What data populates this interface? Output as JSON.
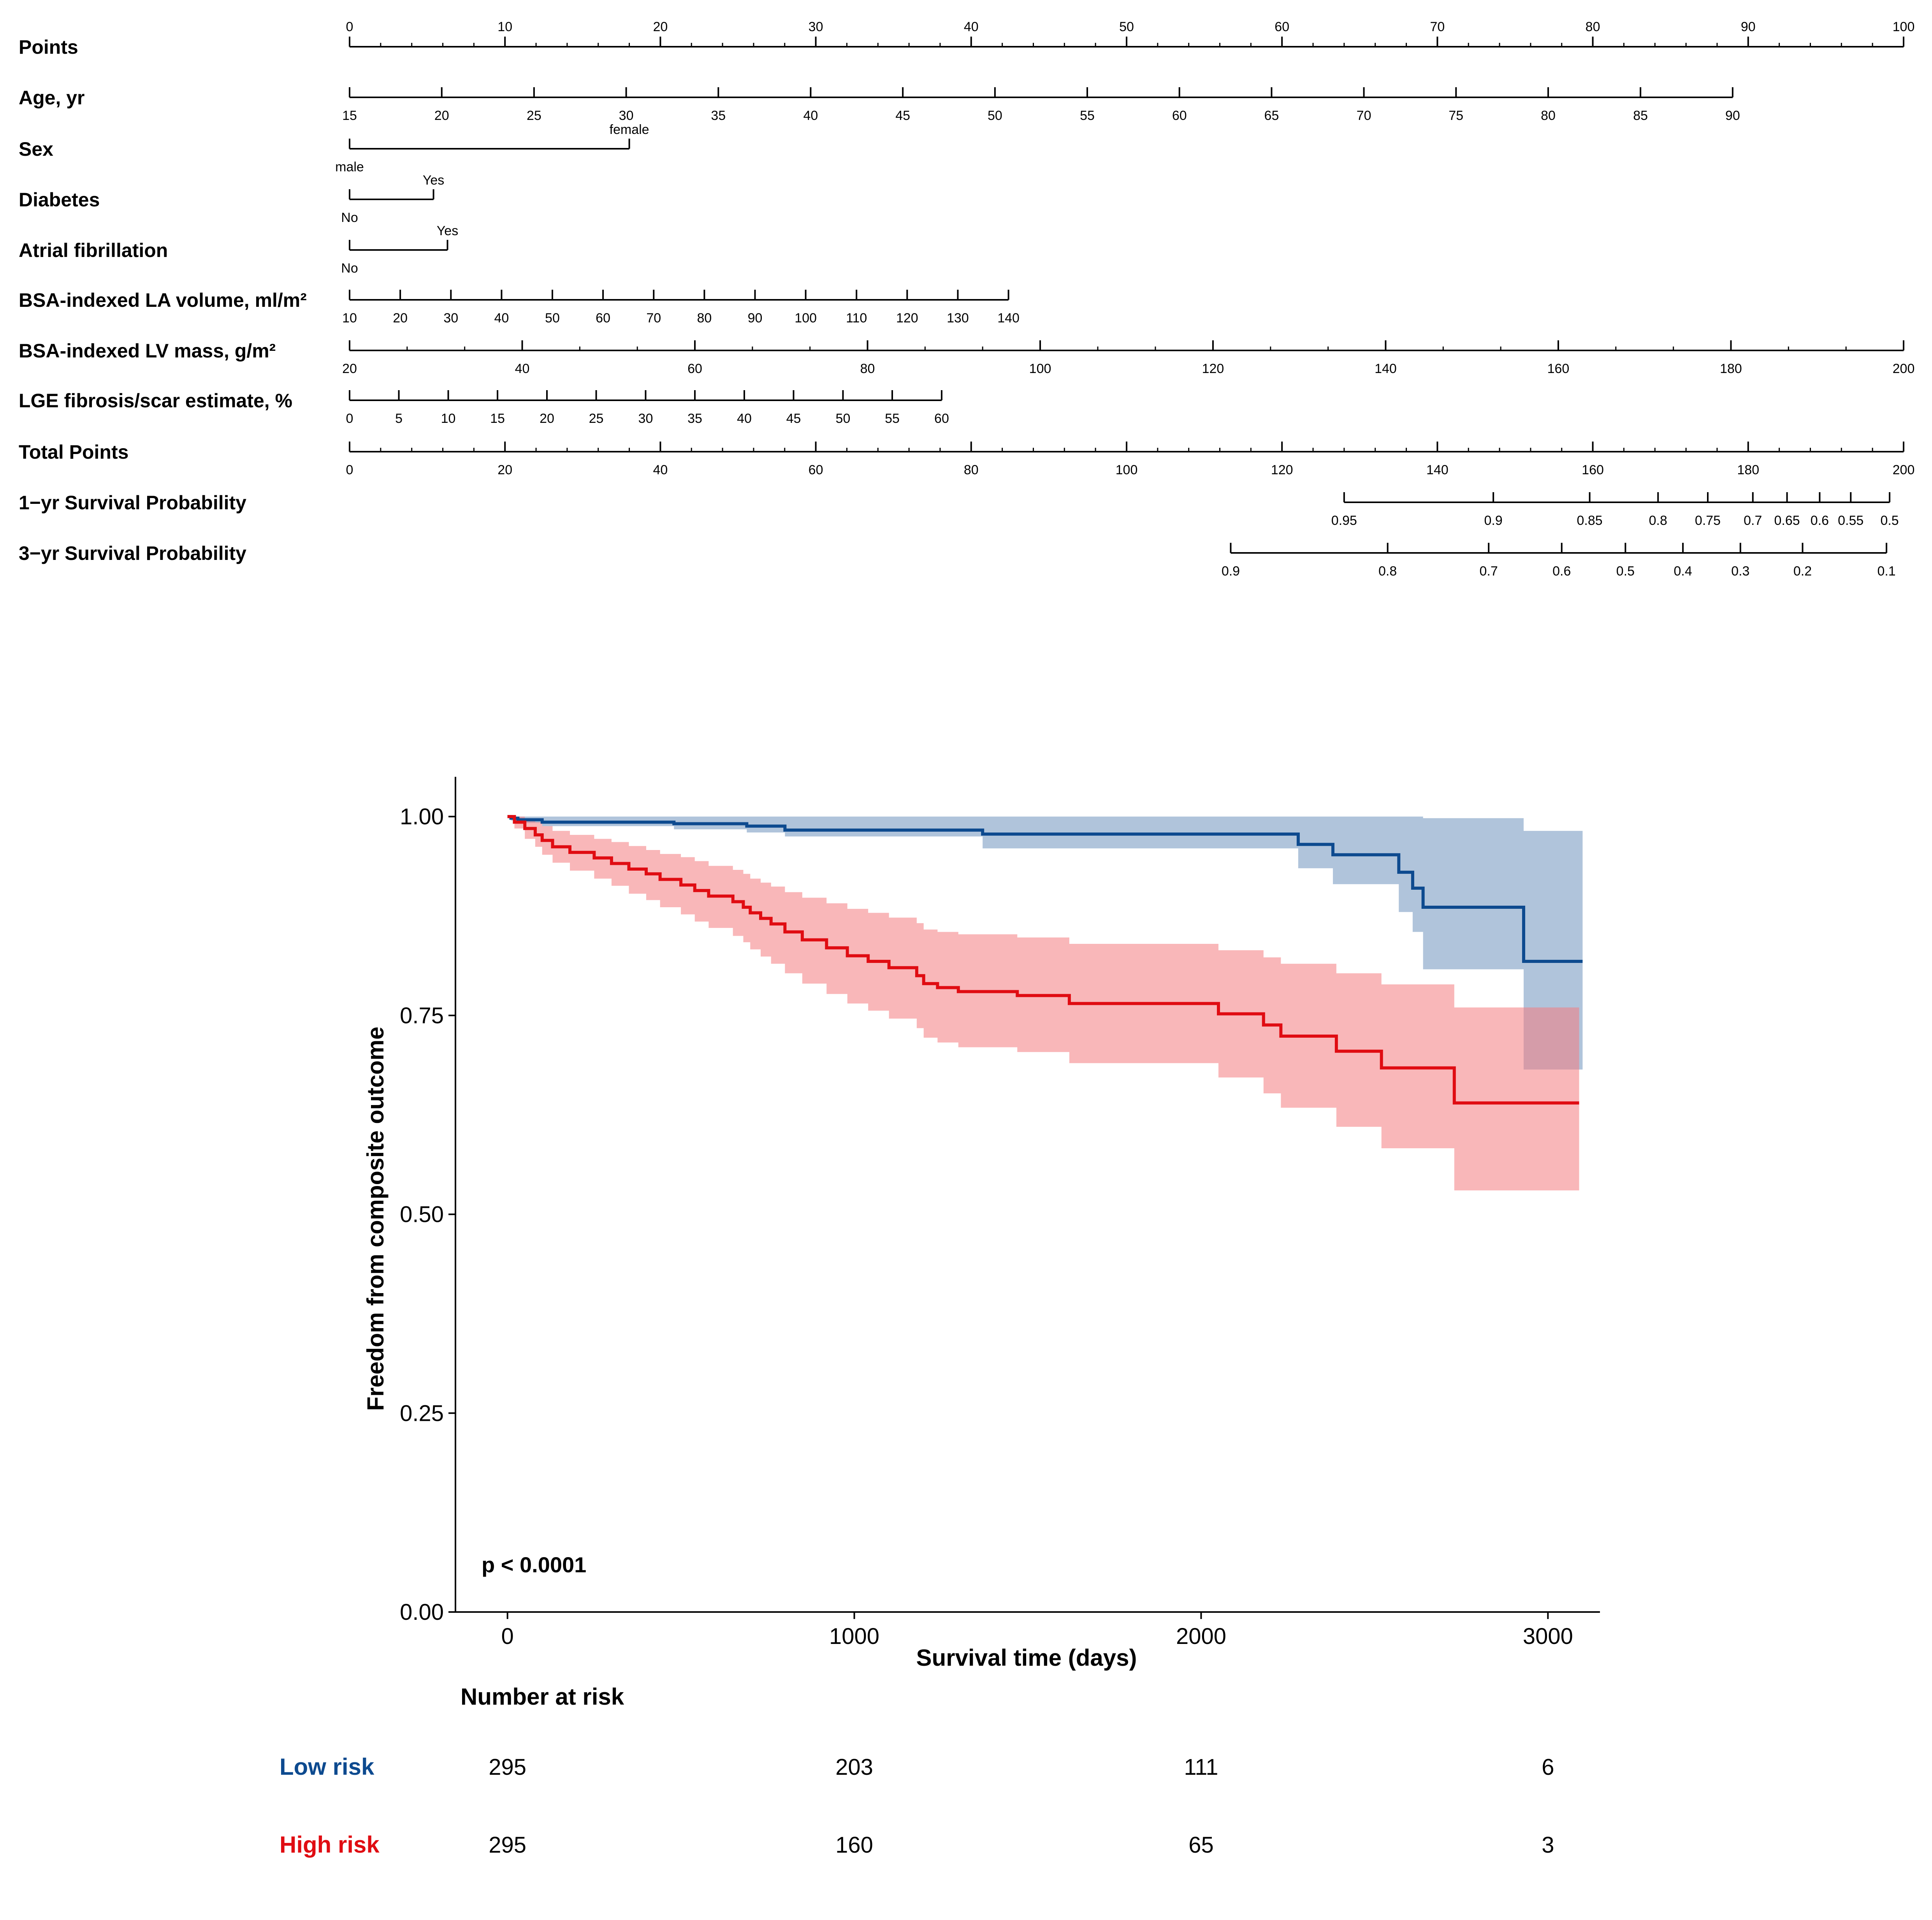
{
  "nomogram": {
    "scales": [
      {
        "id": "points",
        "label": "Points",
        "ticks": [
          {
            "v": 0,
            "t": "0"
          },
          {
            "v": 10,
            "t": "10"
          },
          {
            "v": 20,
            "t": "20"
          },
          {
            "v": 30,
            "t": "30"
          },
          {
            "v": 40,
            "t": "40"
          },
          {
            "v": 50,
            "t": "50"
          },
          {
            "v": 60,
            "t": "60"
          },
          {
            "v": 70,
            "t": "70"
          },
          {
            "v": 80,
            "t": "80"
          },
          {
            "v": 90,
            "t": "90"
          },
          {
            "v": 100,
            "t": "100"
          }
        ],
        "minor_step": 2,
        "label_pos": "above"
      },
      {
        "id": "age",
        "label": "Age, yr",
        "ticks": [
          {
            "v": 0,
            "t": "15"
          },
          {
            "v": 5.93,
            "t": "20"
          },
          {
            "v": 11.87,
            "t": "25"
          },
          {
            "v": 17.8,
            "t": "30"
          },
          {
            "v": 23.73,
            "t": "35"
          },
          {
            "v": 29.67,
            "t": "40"
          },
          {
            "v": 35.6,
            "t": "45"
          },
          {
            "v": 41.53,
            "t": "50"
          },
          {
            "v": 47.47,
            "t": "55"
          },
          {
            "v": 53.4,
            "t": "60"
          },
          {
            "v": 59.33,
            "t": "65"
          },
          {
            "v": 65.27,
            "t": "70"
          },
          {
            "v": 71.2,
            "t": "75"
          },
          {
            "v": 77.13,
            "t": "80"
          },
          {
            "v": 83.07,
            "t": "85"
          },
          {
            "v": 89.0,
            "t": "90"
          }
        ],
        "label_pos": "below"
      },
      {
        "id": "sex",
        "label": "Sex",
        "ticks": [
          {
            "v": 0,
            "t": "male",
            "pos": "below"
          },
          {
            "v": 18.0,
            "t": "female",
            "pos": "above"
          }
        ]
      },
      {
        "id": "diabetes",
        "label": "Diabetes",
        "ticks": [
          {
            "v": 0,
            "t": "No",
            "pos": "below"
          },
          {
            "v": 5.4,
            "t": "Yes",
            "pos": "above"
          }
        ]
      },
      {
        "id": "af",
        "label": "Atrial fibrillation",
        "ticks": [
          {
            "v": 0,
            "t": "No",
            "pos": "below"
          },
          {
            "v": 6.3,
            "t": "Yes",
            "pos": "above"
          }
        ]
      },
      {
        "id": "la",
        "label": "BSA-indexed LA volume, ml/m²",
        "ticks": [
          {
            "v": 0,
            "t": "10"
          },
          {
            "v": 3.26,
            "t": "20"
          },
          {
            "v": 6.52,
            "t": "30"
          },
          {
            "v": 9.78,
            "t": "40"
          },
          {
            "v": 13.05,
            "t": "50"
          },
          {
            "v": 16.31,
            "t": "60"
          },
          {
            "v": 19.57,
            "t": "70"
          },
          {
            "v": 22.83,
            "t": "80"
          },
          {
            "v": 26.09,
            "t": "90"
          },
          {
            "v": 29.35,
            "t": "100"
          },
          {
            "v": 32.62,
            "t": "110"
          },
          {
            "v": 35.88,
            "t": "120"
          },
          {
            "v": 39.14,
            "t": "130"
          },
          {
            "v": 42.4,
            "t": "140"
          }
        ],
        "label_pos": "below"
      },
      {
        "id": "lv",
        "label": "BSA-indexed LV mass, g/m²",
        "ticks": [
          {
            "v": 0,
            "t": "20"
          },
          {
            "v": 11.11,
            "t": "40"
          },
          {
            "v": 22.22,
            "t": "60"
          },
          {
            "v": 33.33,
            "t": "80"
          },
          {
            "v": 44.44,
            "t": "100"
          },
          {
            "v": 55.56,
            "t": "120"
          },
          {
            "v": 66.67,
            "t": "140"
          },
          {
            "v": 77.78,
            "t": "160"
          },
          {
            "v": 88.89,
            "t": "180"
          },
          {
            "v": 100,
            "t": "200"
          }
        ],
        "minor_count": 2,
        "label_pos": "below"
      },
      {
        "id": "lge",
        "label": "LGE fibrosis/scar estimate, %",
        "ticks": [
          {
            "v": 0,
            "t": "0"
          },
          {
            "v": 3.17,
            "t": "5"
          },
          {
            "v": 6.35,
            "t": "10"
          },
          {
            "v": 9.52,
            "t": "15"
          },
          {
            "v": 12.7,
            "t": "20"
          },
          {
            "v": 15.87,
            "t": "25"
          },
          {
            "v": 19.05,
            "t": "30"
          },
          {
            "v": 22.22,
            "t": "35"
          },
          {
            "v": 25.4,
            "t": "40"
          },
          {
            "v": 28.57,
            "t": "45"
          },
          {
            "v": 31.75,
            "t": "50"
          },
          {
            "v": 34.92,
            "t": "55"
          },
          {
            "v": 38.1,
            "t": "60"
          }
        ],
        "label_pos": "below"
      },
      {
        "id": "total",
        "label": "Total Points",
        "ticks": [
          {
            "v": 0,
            "t": "0"
          },
          {
            "v": 10,
            "t": "20"
          },
          {
            "v": 20,
            "t": "40"
          },
          {
            "v": 30,
            "t": "60"
          },
          {
            "v": 40,
            "t": "80"
          },
          {
            "v": 50,
            "t": "100"
          },
          {
            "v": 60,
            "t": "120"
          },
          {
            "v": 70,
            "t": "140"
          },
          {
            "v": 80,
            "t": "160"
          },
          {
            "v": 90,
            "t": "180"
          },
          {
            "v": 100,
            "t": "200"
          }
        ],
        "minor_step": 2,
        "label_pos": "below"
      },
      {
        "id": "surv1",
        "label": "1−yr Survival Probability",
        "ticks": [
          {
            "v": 64.0,
            "t": "0.95"
          },
          {
            "v": 73.6,
            "t": "0.9"
          },
          {
            "v": 79.8,
            "t": "0.85"
          },
          {
            "v": 84.2,
            "t": "0.8"
          },
          {
            "v": 87.4,
            "t": "0.75"
          },
          {
            "v": 90.3,
            "t": "0.7"
          },
          {
            "v": 92.5,
            "t": "0.65"
          },
          {
            "v": 94.6,
            "t": "0.6"
          },
          {
            "v": 96.6,
            "t": "0.55"
          },
          {
            "v": 99.1,
            "t": "0.5"
          }
        ],
        "label_pos": "below"
      },
      {
        "id": "surv3",
        "label": "3−yr Survival Probability",
        "ticks": [
          {
            "v": 56.7,
            "t": "0.9"
          },
          {
            "v": 66.8,
            "t": "0.8"
          },
          {
            "v": 73.3,
            "t": "0.7"
          },
          {
            "v": 78.0,
            "t": "0.6"
          },
          {
            "v": 82.1,
            "t": "0.5"
          },
          {
            "v": 85.8,
            "t": "0.4"
          },
          {
            "v": 89.5,
            "t": "0.3"
          },
          {
            "v": 93.5,
            "t": "0.2"
          },
          {
            "v": 98.9,
            "t": "0.1"
          }
        ],
        "label_pos": "below"
      }
    ]
  },
  "chart_data": {
    "type": "line",
    "xlabel": "Survival time (days)",
    "ylabel": "Freedom from composite outcome",
    "xlim": [
      -150,
      3150
    ],
    "ylim": [
      0,
      1.05
    ],
    "xticks": [
      {
        "v": 0,
        "t": "0"
      },
      {
        "v": 1000,
        "t": "1000"
      },
      {
        "v": 2000,
        "t": "2000"
      },
      {
        "v": 3000,
        "t": "3000"
      }
    ],
    "yticks": [
      {
        "v": 0,
        "t": "0.00"
      },
      {
        "v": 0.25,
        "t": "0.25"
      },
      {
        "v": 0.5,
        "t": "0.50"
      },
      {
        "v": 0.75,
        "t": "0.75"
      },
      {
        "v": 1.0,
        "t": "1.00"
      }
    ],
    "annotation": "p < 0.0001",
    "series": [
      {
        "name": "Low risk",
        "color": "#0d4a8f",
        "band_color": "#6f93be",
        "x": [
          0,
          10,
          30,
          100,
          480,
          690,
          800,
          1370,
          2280,
          2380,
          2570,
          2610,
          2640,
          2930,
          3100
        ],
        "y": [
          1.0,
          0.998,
          0.996,
          0.993,
          0.991,
          0.988,
          0.983,
          0.978,
          0.965,
          0.952,
          0.93,
          0.91,
          0.886,
          0.818,
          0.818
        ],
        "lower": [
          1.0,
          0.995,
          0.992,
          0.988,
          0.984,
          0.98,
          0.975,
          0.96,
          0.935,
          0.915,
          0.88,
          0.855,
          0.808,
          0.682,
          0.682
        ],
        "upper": [
          1.0,
          1.0,
          1.0,
          1.0,
          1.0,
          1.0,
          1.0,
          1.0,
          1.0,
          1.0,
          1.0,
          1.0,
          0.998,
          0.982,
          0.982
        ]
      },
      {
        "name": "High risk",
        "color": "#e00c12",
        "band_color": "#f47b80",
        "x": [
          0,
          20,
          50,
          80,
          100,
          130,
          180,
          250,
          300,
          350,
          400,
          440,
          500,
          540,
          580,
          650,
          680,
          700,
          730,
          760,
          800,
          850,
          920,
          980,
          1040,
          1100,
          1180,
          1200,
          1240,
          1300,
          1470,
          1620,
          2050,
          2180,
          2230,
          2390,
          2520,
          2730,
          3090
        ],
        "y": [
          1.0,
          0.993,
          0.985,
          0.977,
          0.97,
          0.962,
          0.955,
          0.948,
          0.941,
          0.934,
          0.928,
          0.921,
          0.914,
          0.907,
          0.9,
          0.893,
          0.886,
          0.879,
          0.872,
          0.865,
          0.855,
          0.845,
          0.835,
          0.825,
          0.818,
          0.81,
          0.8,
          0.79,
          0.785,
          0.78,
          0.775,
          0.765,
          0.752,
          0.738,
          0.724,
          0.705,
          0.684,
          0.64,
          0.64
        ],
        "lower": [
          1.0,
          0.985,
          0.972,
          0.962,
          0.952,
          0.942,
          0.932,
          0.922,
          0.913,
          0.903,
          0.895,
          0.886,
          0.877,
          0.868,
          0.86,
          0.85,
          0.842,
          0.833,
          0.824,
          0.815,
          0.803,
          0.79,
          0.777,
          0.765,
          0.756,
          0.746,
          0.734,
          0.722,
          0.716,
          0.71,
          0.704,
          0.69,
          0.672,
          0.652,
          0.634,
          0.61,
          0.583,
          0.53,
          0.53
        ],
        "upper": [
          1.0,
          1.0,
          0.997,
          0.993,
          0.988,
          0.982,
          0.977,
          0.972,
          0.968,
          0.963,
          0.958,
          0.953,
          0.949,
          0.944,
          0.938,
          0.933,
          0.928,
          0.922,
          0.917,
          0.912,
          0.905,
          0.898,
          0.891,
          0.884,
          0.879,
          0.873,
          0.866,
          0.858,
          0.855,
          0.852,
          0.848,
          0.84,
          0.832,
          0.823,
          0.815,
          0.803,
          0.789,
          0.76,
          0.76
        ]
      }
    ]
  },
  "risk_table": {
    "title": "Number at risk",
    "times": [
      0,
      1000,
      2000,
      3000
    ],
    "rows": [
      {
        "name": "Low risk",
        "color": "#0d4a8f",
        "counts": [
          "295",
          "203",
          "111",
          "6"
        ]
      },
      {
        "name": "High risk",
        "color": "#e00c12",
        "counts": [
          "295",
          "160",
          "65",
          "3"
        ]
      }
    ]
  }
}
